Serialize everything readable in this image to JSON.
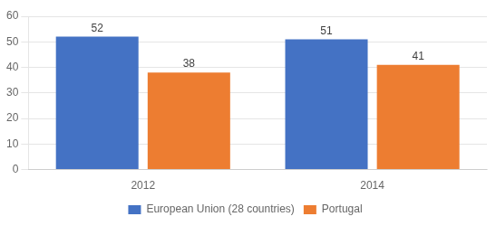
{
  "chart_data": {
    "type": "bar",
    "categories": [
      "2012",
      "2014"
    ],
    "series": [
      {
        "name": "European Union (28 countries)",
        "color": "#4472C4",
        "values": [
          52,
          51
        ]
      },
      {
        "name": "Portugal",
        "color": "#ED7D31",
        "values": [
          38,
          41
        ]
      }
    ],
    "ylim": [
      0,
      60
    ],
    "yticks": [
      0,
      10,
      20,
      30,
      40,
      50,
      60
    ],
    "grid": true,
    "legend": "bottom",
    "data_labels": true
  }
}
